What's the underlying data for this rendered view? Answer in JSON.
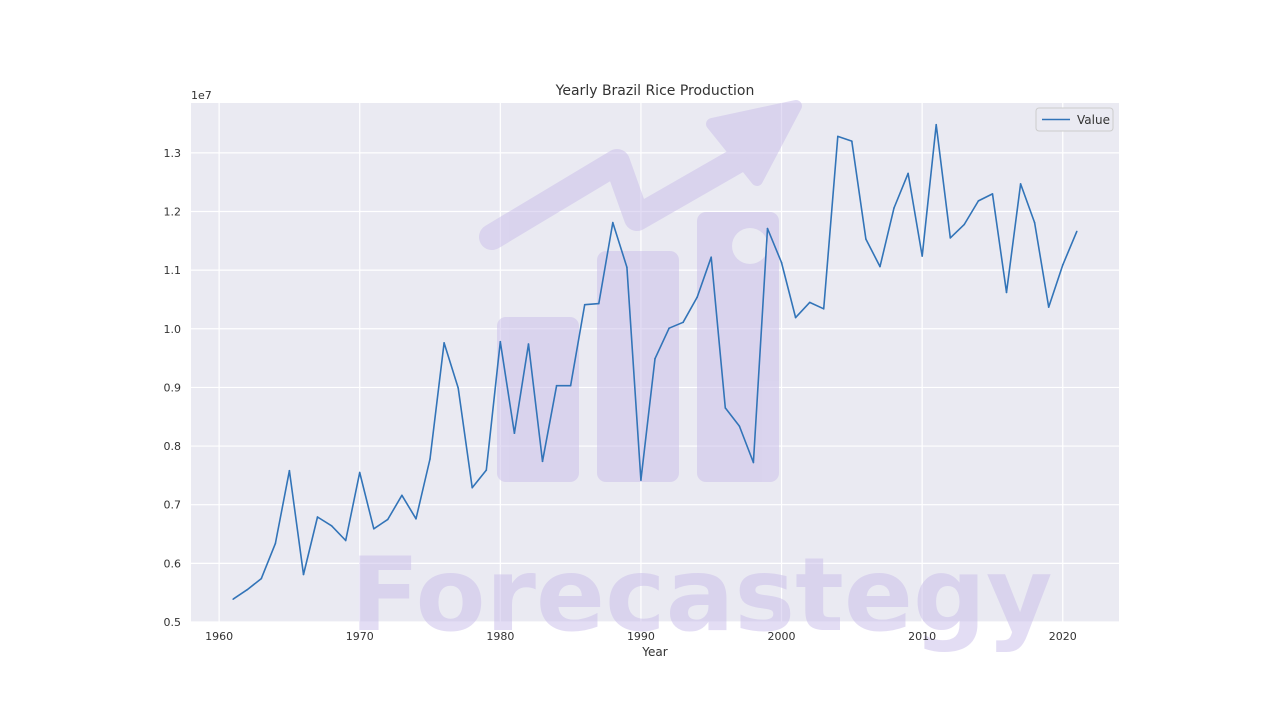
{
  "chart_data": {
    "type": "line",
    "title": "Yearly Brazil Rice Production",
    "xlabel": "Year",
    "ylabel": "",
    "y_multiplier_label": "1e7",
    "xlim": [
      1958,
      2024
    ],
    "ylim": [
      0.5,
      1.385
    ],
    "xticks": [
      1960,
      1970,
      1980,
      1990,
      2000,
      2010,
      2020
    ],
    "yticks": [
      0.5,
      0.6,
      0.7,
      0.8,
      0.9,
      1.0,
      1.1,
      1.2,
      1.3
    ],
    "ytick_labels": [
      "0.5",
      "0.6",
      "0.7",
      "0.8",
      "0.9",
      "1.0",
      "1.1",
      "1.2",
      "1.3"
    ],
    "grid": true,
    "legend_position": "top-right",
    "x": [
      1961,
      1962,
      1963,
      1964,
      1965,
      1966,
      1967,
      1968,
      1969,
      1970,
      1971,
      1972,
      1973,
      1974,
      1975,
      1976,
      1977,
      1978,
      1979,
      1980,
      1981,
      1982,
      1983,
      1984,
      1985,
      1986,
      1987,
      1988,
      1989,
      1990,
      1991,
      1992,
      1993,
      1994,
      1995,
      1996,
      1997,
      1998,
      1999,
      2000,
      2001,
      2002,
      2003,
      2004,
      2005,
      2006,
      2007,
      2008,
      2009,
      2010,
      2011,
      2012,
      2013,
      2014,
      2015,
      2016,
      2017,
      2018,
      2019,
      2020,
      2021
    ],
    "series": [
      {
        "name": "Value",
        "color": "#3274b8",
        "values": [
          0.539,
          0.555,
          0.574,
          0.634,
          0.758,
          0.581,
          0.679,
          0.664,
          0.639,
          0.755,
          0.659,
          0.675,
          0.716,
          0.676,
          0.778,
          0.976,
          0.899,
          0.729,
          0.759,
          0.978,
          0.822,
          0.974,
          0.774,
          0.903,
          0.903,
          1.041,
          1.043,
          1.181,
          1.105,
          0.742,
          0.949,
          1.001,
          1.011,
          1.054,
          1.122,
          0.865,
          0.834,
          0.772,
          1.171,
          1.113,
          1.019,
          1.045,
          1.034,
          1.328,
          1.32,
          1.153,
          1.106,
          1.206,
          1.265,
          1.124,
          1.348,
          1.155,
          1.178,
          1.218,
          1.23,
          1.062,
          1.247,
          1.181,
          1.037,
          1.109,
          1.166
        ]
      }
    ]
  },
  "watermark": {
    "text": "Forecastegy",
    "color": "#c9bdea"
  },
  "colors": {
    "plot_background": "#eaeaf2",
    "grid": "#ffffff",
    "text": "#333333"
  }
}
